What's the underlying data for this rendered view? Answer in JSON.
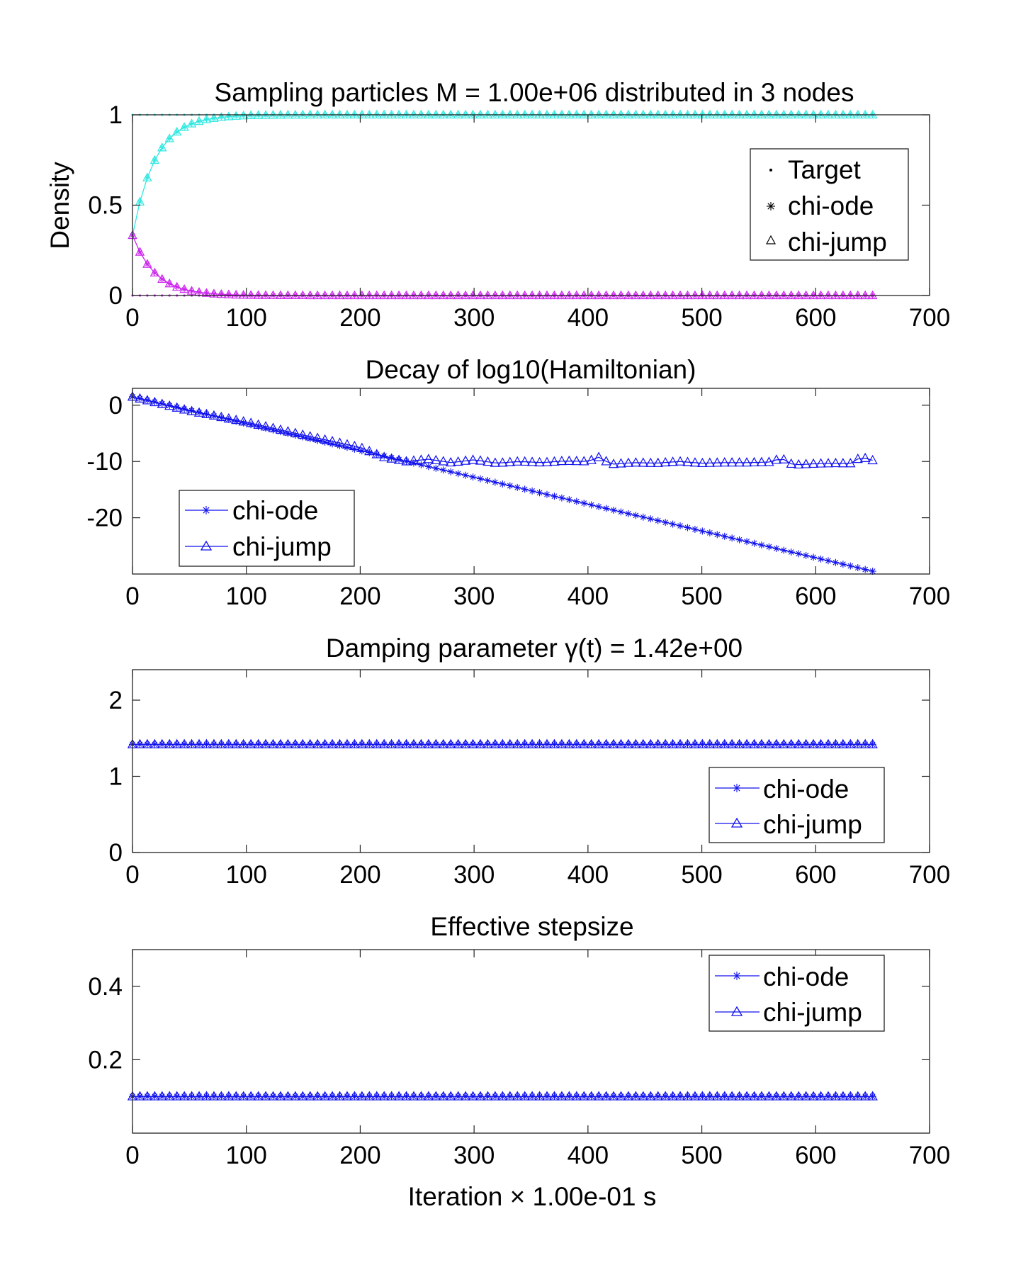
{
  "colors": {
    "cyan": "#2ee8e0",
    "magenta": "#cc22ee",
    "blue": "#1010ee",
    "black": "#000000"
  },
  "chart_data": [
    {
      "type": "line",
      "title": "Sampling particles M = 1.00e+06 distributed in 3 nodes",
      "xlabel": "",
      "ylabel": "Density",
      "xlim": [
        0,
        700
      ],
      "ylim": [
        0,
        1
      ],
      "xticks": [
        0,
        100,
        200,
        300,
        400,
        500,
        600,
        700
      ],
      "yticks": [
        0,
        0.5,
        1
      ],
      "legend_position": "top-right",
      "legend": [
        {
          "label": "Target",
          "marker": "dot"
        },
        {
          "label": "chi-ode",
          "marker": "star"
        },
        {
          "label": "chi-jump",
          "marker": "triangle"
        }
      ],
      "x_range": [
        0,
        650
      ],
      "step": 6.5,
      "series": [
        {
          "kind": "target",
          "color": "cyan",
          "value": 1.0
        },
        {
          "kind": "target",
          "color": "magenta",
          "value": 0.0
        },
        {
          "kind": "curve",
          "color": "cyan",
          "model": "rise",
          "start": 0.333,
          "end": 1.0,
          "tau": 20
        },
        {
          "kind": "curve",
          "color": "magenta",
          "model": "decay",
          "start": 0.333,
          "end": 0.0,
          "tau": 20
        }
      ]
    },
    {
      "type": "line",
      "title": "Decay of log10(Hamiltonian)",
      "xlabel": "",
      "ylabel": "",
      "xlim": [
        0,
        700
      ],
      "ylim": [
        -30,
        3
      ],
      "xticks": [
        0,
        100,
        200,
        300,
        400,
        500,
        600,
        700
      ],
      "yticks": [
        0,
        -10,
        -20
      ],
      "legend_position": "bottom-left",
      "legend": [
        {
          "label": "chi-ode",
          "marker": "star"
        },
        {
          "label": "chi-jump",
          "marker": "triangle"
        }
      ],
      "step": 6.5,
      "series": [
        {
          "name": "chi-ode",
          "color": "blue",
          "marker": "star",
          "points": [
            [
              0,
              1.5
            ],
            [
              650,
              -29.5
            ]
          ]
        },
        {
          "name": "chi-jump",
          "color": "blue",
          "marker": "triangle",
          "points": [
            [
              0,
              1.5
            ],
            [
              50,
              -1
            ],
            [
              100,
              -3
            ],
            [
              150,
              -5.3
            ],
            [
              200,
              -7.5
            ],
            [
              220,
              -9.2
            ],
            [
              240,
              -10
            ],
            [
              260,
              -9.6
            ],
            [
              280,
              -10.2
            ],
            [
              300,
              -9.7
            ],
            [
              320,
              -10.3
            ],
            [
              340,
              -10
            ],
            [
              360,
              -10.2
            ],
            [
              380,
              -9.9
            ],
            [
              400,
              -10
            ],
            [
              410,
              -9.2
            ],
            [
              420,
              -10.5
            ],
            [
              440,
              -10.2
            ],
            [
              460,
              -10.3
            ],
            [
              480,
              -10
            ],
            [
              500,
              -10.3
            ],
            [
              520,
              -10.2
            ],
            [
              540,
              -10.2
            ],
            [
              560,
              -10.1
            ],
            [
              570,
              -9.4
            ],
            [
              580,
              -10.6
            ],
            [
              600,
              -10.4
            ],
            [
              620,
              -10.3
            ],
            [
              630,
              -10.4
            ],
            [
              640,
              -9.2
            ],
            [
              650,
              -9.8
            ]
          ]
        }
      ]
    },
    {
      "type": "line",
      "title": "Damping parameter γ(t) = 1.42e+00",
      "xlabel": "",
      "ylabel": "",
      "xlim": [
        0,
        700
      ],
      "ylim": [
        0,
        2.4
      ],
      "xticks": [
        0,
        100,
        200,
        300,
        400,
        500,
        600,
        700
      ],
      "yticks": [
        0,
        1,
        2
      ],
      "legend_position": "bottom-right",
      "legend": [
        {
          "label": "chi-ode",
          "marker": "star"
        },
        {
          "label": "chi-jump",
          "marker": "triangle"
        }
      ],
      "step": 6.5,
      "series": [
        {
          "name": "chi-ode",
          "color": "blue",
          "marker": "star",
          "points": [
            [
              0,
              1.42
            ],
            [
              650,
              1.42
            ]
          ]
        },
        {
          "name": "chi-jump",
          "color": "blue",
          "marker": "triangle",
          "points": [
            [
              0,
              1.42
            ],
            [
              650,
              1.42
            ]
          ]
        }
      ]
    },
    {
      "type": "line",
      "title": "Effective stepsize",
      "xlabel": "Iteration × 1.00e-01 s",
      "ylabel": "",
      "xlim": [
        0,
        700
      ],
      "ylim": [
        0,
        0.5
      ],
      "xticks": [
        0,
        100,
        200,
        300,
        400,
        500,
        600,
        700
      ],
      "yticks": [
        0.2,
        0.4
      ],
      "legend_position": "top-right",
      "legend": [
        {
          "label": "chi-ode",
          "marker": "star"
        },
        {
          "label": "chi-jump",
          "marker": "triangle"
        }
      ],
      "step": 6.5,
      "series": [
        {
          "name": "chi-ode",
          "color": "blue",
          "marker": "star",
          "points": [
            [
              0,
              0.1
            ],
            [
              650,
              0.1
            ]
          ]
        },
        {
          "name": "chi-jump",
          "color": "blue",
          "marker": "triangle",
          "points": [
            [
              0,
              0.1
            ],
            [
              650,
              0.1
            ]
          ]
        }
      ]
    }
  ]
}
